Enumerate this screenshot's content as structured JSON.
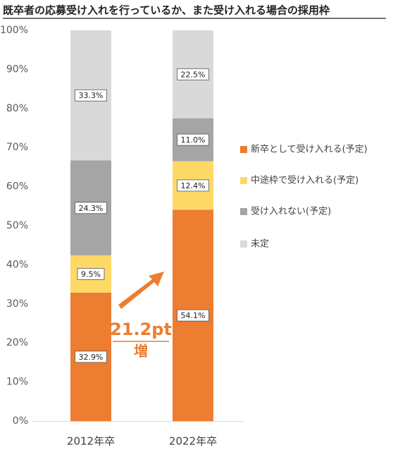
{
  "chart_data": {
    "type": "stacked-bar",
    "title": "既卒者の応募受け入れを行っているか、また受け入れる場合の採用枠",
    "categories": [
      "2012年卒",
      "2022年卒"
    ],
    "series": [
      {
        "name": "新卒として受け入れる(予定)",
        "color": "#ed7d31",
        "values": [
          32.9,
          54.1
        ],
        "value_labels": [
          "32.9%",
          "54.1%"
        ]
      },
      {
        "name": "中途枠で受け入れる(予定)",
        "color": "#ffd966",
        "values": [
          9.5,
          12.4
        ],
        "value_labels": [
          "9.5%",
          "12.4%"
        ]
      },
      {
        "name": "受け入れない(予定)",
        "color": "#a5a5a5",
        "values": [
          24.3,
          11.0
        ],
        "value_labels": [
          "24.3%",
          "11.0%"
        ]
      },
      {
        "name": "未定",
        "color": "#d9d9d9",
        "values": [
          33.3,
          22.5
        ],
        "value_labels": [
          "33.3%",
          "22.5%"
        ]
      }
    ],
    "ylim": [
      0,
      100
    ],
    "yticks": [
      {
        "value": 0,
        "label": "0%"
      },
      {
        "value": 10,
        "label": "10%"
      },
      {
        "value": 20,
        "label": "20%"
      },
      {
        "value": 30,
        "label": "30%"
      },
      {
        "value": 40,
        "label": "40%"
      },
      {
        "value": 50,
        "label": "50%"
      },
      {
        "value": 60,
        "label": "60%"
      },
      {
        "value": 70,
        "label": "70%"
      },
      {
        "value": 80,
        "label": "80%"
      },
      {
        "value": 90,
        "label": "90%"
      },
      {
        "value": 100,
        "label": "100%"
      }
    ],
    "grid": false,
    "legend": "right",
    "annotation": "21.2pt",
    "annotation_sub": "増"
  }
}
